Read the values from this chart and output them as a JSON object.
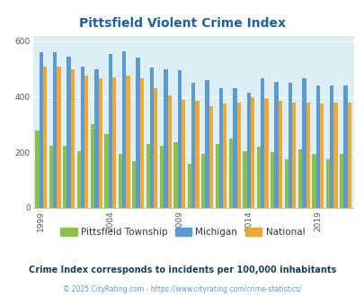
{
  "title": "Pittsfield Violent Crime Index",
  "years": [
    1999,
    2000,
    2001,
    2002,
    2003,
    2004,
    2005,
    2006,
    2007,
    2008,
    2009,
    2010,
    2011,
    2012,
    2013,
    2014,
    2015,
    2016,
    2017,
    2018,
    2019,
    2020,
    2021
  ],
  "pittsfield": [
    280,
    225,
    225,
    205,
    300,
    265,
    195,
    170,
    230,
    225,
    235,
    160,
    195,
    230,
    250,
    205,
    220,
    200,
    175,
    210,
    195,
    175,
    195
  ],
  "michigan": [
    560,
    560,
    545,
    510,
    500,
    555,
    565,
    540,
    505,
    500,
    495,
    450,
    460,
    430,
    430,
    415,
    465,
    455,
    450,
    465,
    440,
    440,
    440
  ],
  "national": [
    510,
    510,
    500,
    475,
    465,
    470,
    475,
    465,
    430,
    405,
    390,
    385,
    365,
    375,
    380,
    400,
    395,
    385,
    380,
    380,
    375,
    380,
    380
  ],
  "pittsfield_color": "#8bc34a",
  "michigan_color": "#5b9bd5",
  "national_color": "#f0a830",
  "bg_color": "#ffffff",
  "plot_bg_color": "#ddeef5",
  "title_color": "#1f5fa6",
  "legend_label_color": "#333333",
  "legend_labels": [
    "Pittsfield Township",
    "Michigan",
    "National"
  ],
  "subtitle": "Crime Index corresponds to incidents per 100,000 inhabitants",
  "subtitle_color": "#1a4060",
  "footer": "© 2025 CityRating.com - https://www.cityrating.com/crime-statistics/",
  "footer_color": "#5b9bd5",
  "ylim": [
    0,
    620
  ],
  "yticks": [
    0,
    200,
    400,
    600
  ],
  "xlabel_years": [
    1999,
    2004,
    2009,
    2014,
    2019
  ]
}
